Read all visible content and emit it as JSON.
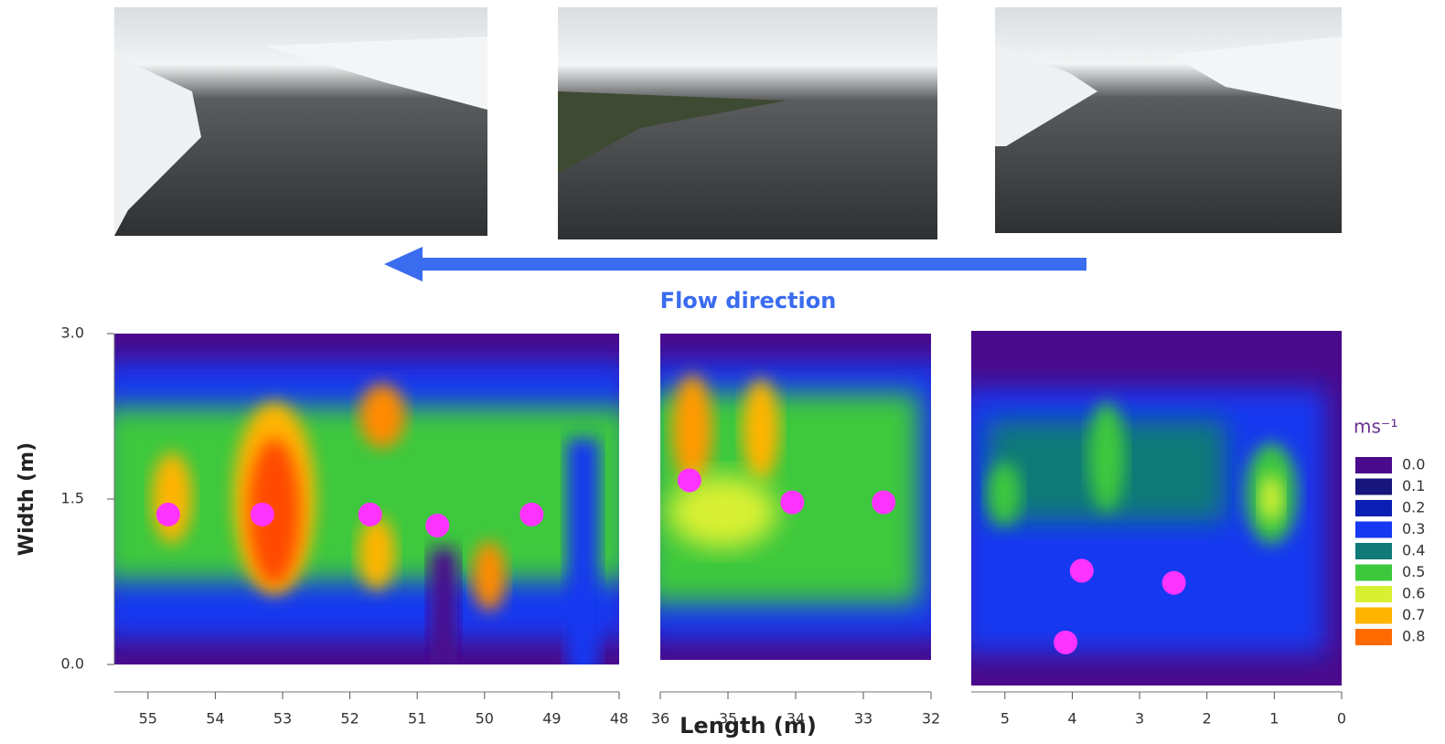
{
  "flow_label": "Flow direction",
  "chart_data": {
    "type": "scatter",
    "xlabel": "Length (m)",
    "ylabel": "Width (m)",
    "ylim": [
      0,
      3
    ],
    "yticks": [
      {
        "value": 0,
        "label": "0.0"
      },
      {
        "value": 1.5,
        "label": "1.5"
      },
      {
        "value": 3,
        "label": "3.0"
      }
    ],
    "point_color": "#ff33ff",
    "panels": [
      {
        "xlim": [
          55.5,
          48
        ],
        "xticks": [
          55,
          54,
          53,
          52,
          51,
          50,
          49,
          48
        ],
        "x": [
          54.7,
          53.3,
          51.7,
          50.7,
          49.3
        ],
        "y": [
          1.36,
          1.36,
          1.36,
          1.26,
          1.36
        ]
      },
      {
        "xlim": [
          36,
          32
        ],
        "xticks": [
          36,
          35,
          34,
          33,
          32
        ],
        "x": [
          35.57,
          34.05,
          32.7
        ],
        "y": [
          1.67,
          1.47,
          1.47
        ]
      },
      {
        "xlim": [
          5.5,
          0
        ],
        "xticks": [
          5,
          4,
          3,
          2,
          1,
          0
        ],
        "x": [
          3.86,
          2.49,
          4.1
        ],
        "y": [
          0.85,
          0.74,
          0.2
        ]
      }
    ],
    "legend": {
      "title": "ms⁻¹",
      "entries": [
        {
          "value": 0,
          "label": "0.0",
          "color": "#4a0a8c"
        },
        {
          "value": 0.1,
          "label": "0.1",
          "color": "#16167c"
        },
        {
          "value": 0.2,
          "label": "0.2",
          "color": "#0b1fb4"
        },
        {
          "value": 0.3,
          "label": "0.3",
          "color": "#1638f0"
        },
        {
          "value": 0.4,
          "label": "0.4",
          "color": "#0f7a78"
        },
        {
          "value": 0.5,
          "label": "0.5",
          "color": "#3cc83c"
        },
        {
          "value": 0.6,
          "label": "0.6",
          "color": "#d8f032"
        },
        {
          "value": 0.7,
          "label": "0.7",
          "color": "#ffb400"
        },
        {
          "value": 0.8,
          "label": "0.8",
          "color": "#ff6a00"
        }
      ]
    }
  }
}
